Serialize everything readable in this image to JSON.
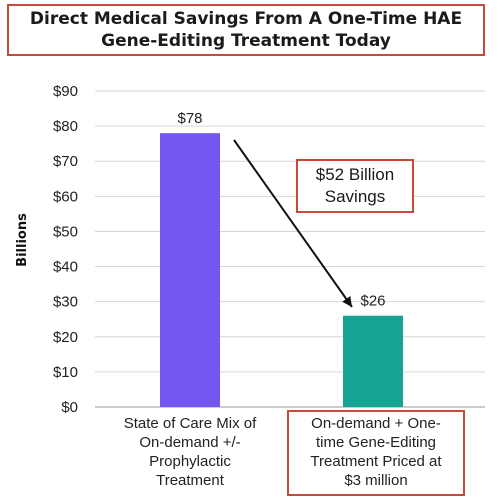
{
  "chart_data": {
    "type": "bar",
    "title_lines": [
      "Direct Medical Savings From A One-Time HAE",
      "Gene-Editing Treatment Today"
    ],
    "ylabel": "Billions",
    "ylim": [
      0,
      90
    ],
    "yticks": [
      "$0",
      "$10",
      "$20",
      "$30",
      "$40",
      "$50",
      "$60",
      "$70",
      "$80",
      "$90"
    ],
    "categories": [
      "State of Care Mix of On-demand +/- Prophylactic Treatment",
      "On-demand + One-time Gene-Editing Treatment Priced at $3 million"
    ],
    "category_lines": [
      [
        "State of Care Mix of",
        "On-demand +/-",
        "Prophylactic",
        "Treatment"
      ],
      [
        "On-demand + One-",
        "time Gene-Editing",
        "Treatment Priced at",
        "$3 million"
      ]
    ],
    "values": [
      78,
      26
    ],
    "data_labels": [
      "$78",
      "$26"
    ],
    "bar_colors": [
      "#7457f0",
      "#17a394"
    ],
    "grid": true,
    "annotation": {
      "text_lines": [
        "$52 Billion",
        "Savings"
      ],
      "border_color": "#c94a3a"
    },
    "highlight_color": "#c94a3a"
  }
}
